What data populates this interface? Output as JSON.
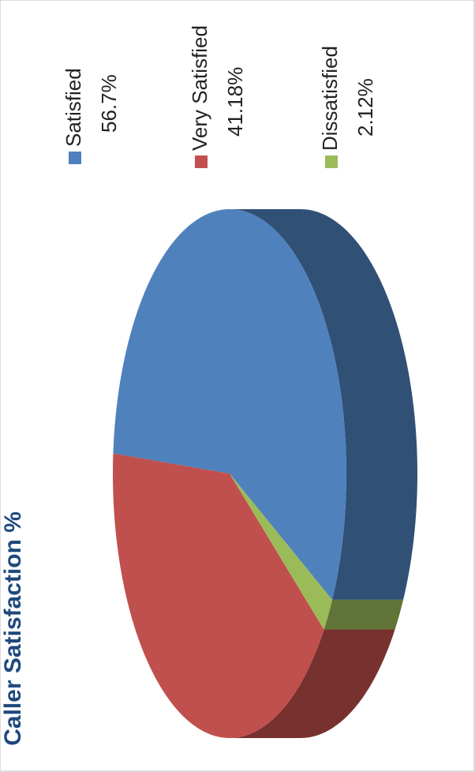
{
  "chart_data": {
    "type": "pie3d",
    "title": "Caller Satisfaction %",
    "categories": [
      "Satisfied",
      "Very Satisfied",
      "Dissatisfied"
    ],
    "values": [
      56.7,
      41.18,
      2.12
    ],
    "value_labels": [
      "56.7%",
      "41.18%",
      "2.12%"
    ],
    "colors": [
      "#4f81bd",
      "#c0504d",
      "#9bbb59"
    ]
  }
}
